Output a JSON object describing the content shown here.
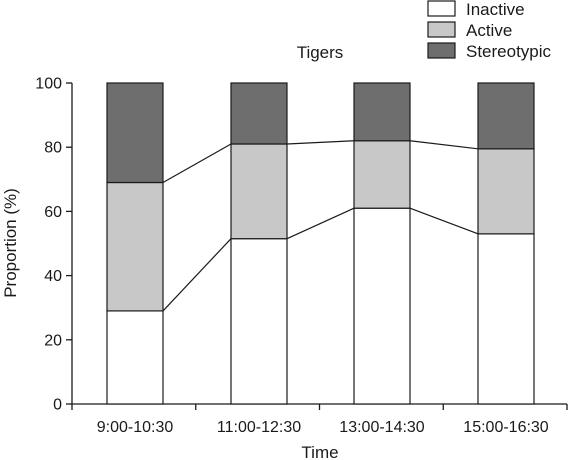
{
  "chart_data": {
    "type": "bar",
    "stacked": true,
    "title": "Tigers",
    "xlabel": "Time",
    "ylabel": "Proportion (%)",
    "ylim": [
      0,
      100
    ],
    "yticks": [
      0,
      20,
      40,
      60,
      80,
      100
    ],
    "categories": [
      "9:00-10:30",
      "11:00-12:30",
      "13:00-14:30",
      "15:00-16:30"
    ],
    "series": [
      {
        "name": "Inactive",
        "color": "#ffffff",
        "values": [
          29,
          51.5,
          61,
          53
        ]
      },
      {
        "name": "Active",
        "color": "#c8c8c8",
        "values": [
          40,
          29.5,
          21,
          26.5
        ]
      },
      {
        "name": "Stereotypic",
        "color": "#6e6e6e",
        "values": [
          31,
          19,
          18,
          20.5
        ]
      }
    ],
    "legend_position": "top-right",
    "connector_lines": true,
    "grid": false
  }
}
